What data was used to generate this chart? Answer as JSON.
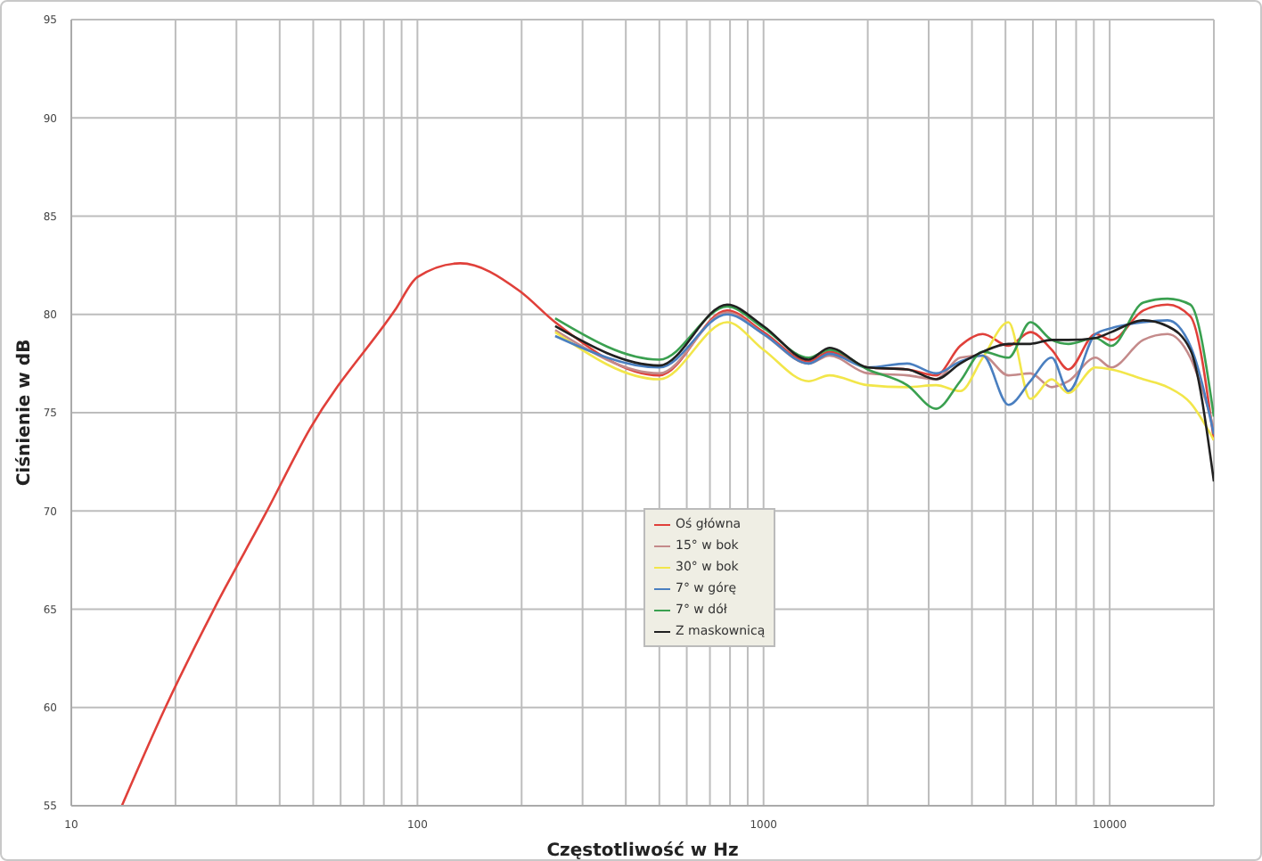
{
  "chart_data": {
    "type": "line",
    "xlabel": "Częstotliwość w Hz",
    "ylabel": "Ciśnienie w dB",
    "log": "x",
    "grid": true,
    "legend": "bottom",
    "xlim": [
      10,
      20000
    ],
    "ylim": [
      55,
      95
    ],
    "xticks": [
      10,
      {
        "value": 20,
        "label": null
      },
      {
        "value": 30,
        "label": null
      },
      {
        "value": 40,
        "label": null
      },
      {
        "value": 50,
        "label": null
      },
      {
        "value": 60,
        "label": null
      },
      {
        "value": 70,
        "label": null
      },
      {
        "value": 80,
        "label": null
      },
      {
        "value": 90,
        "label": null
      },
      100,
      {
        "value": 200,
        "label": null
      },
      {
        "value": 300,
        "label": null
      },
      {
        "value": 400,
        "label": null
      },
      {
        "value": 500,
        "label": null
      },
      {
        "value": 600,
        "label": null
      },
      {
        "value": 700,
        "label": null
      },
      {
        "value": 800,
        "label": null
      },
      {
        "value": 900,
        "label": null
      },
      1000,
      {
        "value": 2000,
        "label": null
      },
      {
        "value": 3000,
        "label": null
      },
      {
        "value": 4000,
        "label": null
      },
      {
        "value": 5000,
        "label": null
      },
      {
        "value": 6000,
        "label": null
      },
      {
        "value": 7000,
        "label": null
      },
      {
        "value": 8000,
        "label": null
      },
      {
        "value": 9000,
        "label": null
      },
      10000
    ],
    "yticks": [
      55,
      60,
      65,
      70,
      75,
      80,
      85,
      90,
      95
    ],
    "x": [
      250,
      500,
      785,
      1000,
      1350,
      1550,
      2000,
      2600,
      3150,
      3700,
      4300,
      5100,
      5900,
      6800,
      7600,
      9100,
      10100,
      12500,
      14700,
      17100,
      20000
    ],
    "series": [
      {
        "name": "Oś główna",
        "color": "#e0403a",
        "x": [
          14,
          18.7,
          26,
          36.5,
          49,
          86,
          100,
          133,
          197,
          250,
          500,
          785,
          1000,
          1350,
          1550,
          2000,
          2600,
          3150,
          3700,
          4300,
          5100,
          5900,
          6800,
          7600,
          9100,
          10100,
          12500,
          14700,
          17100,
          20000
        ],
        "values": [
          55,
          60,
          65.1,
          69.9,
          74.2,
          80.2,
          81.9,
          82.6,
          81.2,
          79.6,
          76.9,
          80.2,
          79.1,
          77.6,
          78.1,
          77.3,
          77.2,
          76.9,
          78.4,
          79.0,
          78.4,
          79.1,
          78.2,
          77.2,
          79.0,
          78.7,
          80.2,
          80.5,
          79.9,
          73.6
        ]
      },
      {
        "name": "15° w bok",
        "color": "#c48a8a",
        "values": [
          79.2,
          77.0,
          80.1,
          79.0,
          77.5,
          77.9,
          77.0,
          76.9,
          76.7,
          77.8,
          77.9,
          76.9,
          77.0,
          76.3,
          76.6,
          77.8,
          77.3,
          78.7,
          79.0,
          77.8,
          74.2
        ]
      },
      {
        "name": "30° w bok",
        "color": "#f2e64a",
        "values": [
          79.1,
          76.7,
          79.6,
          78.2,
          76.6,
          76.9,
          76.4,
          76.3,
          76.4,
          76.1,
          77.8,
          79.6,
          75.7,
          76.7,
          76.0,
          77.3,
          77.2,
          76.7,
          76.3,
          75.5,
          73.6
        ]
      },
      {
        "name": "7° w górę",
        "color": "#4a7fc0",
        "values": [
          78.9,
          77.3,
          80.0,
          79.0,
          77.5,
          78.0,
          77.3,
          77.5,
          77.0,
          77.6,
          77.9,
          75.4,
          76.6,
          77.8,
          76.1,
          79.0,
          79.3,
          79.6,
          79.7,
          78.4,
          73.9
        ]
      },
      {
        "name": "7° w dół",
        "color": "#3aa050",
        "values": [
          79.8,
          77.7,
          80.4,
          79.3,
          77.8,
          78.2,
          77.2,
          76.4,
          75.2,
          76.6,
          78.1,
          77.8,
          79.6,
          78.7,
          78.5,
          78.8,
          78.4,
          80.6,
          80.8,
          80.5,
          74.8
        ]
      },
      {
        "name": "Z maskownicą",
        "color": "#202020",
        "values": [
          79.4,
          77.4,
          80.5,
          79.4,
          77.7,
          78.3,
          77.3,
          77.2,
          76.7,
          77.5,
          78.1,
          78.5,
          78.5,
          78.7,
          78.7,
          78.8,
          79.1,
          79.7,
          79.4,
          78.2,
          71.5
        ]
      }
    ]
  }
}
